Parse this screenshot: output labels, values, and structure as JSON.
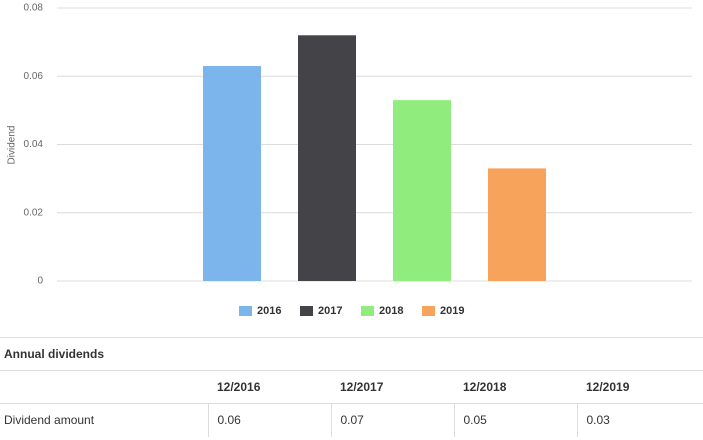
{
  "chart_data": {
    "type": "bar",
    "y_label": "Dividend",
    "categories": [
      null
    ],
    "series": [
      {
        "name": "2016",
        "color": "#7cb5ec",
        "values": [
          0.063
        ]
      },
      {
        "name": "2017",
        "color": "#434348",
        "values": [
          0.072
        ]
      },
      {
        "name": "2018",
        "color": "#90ed7d",
        "values": [
          0.053
        ]
      },
      {
        "name": "2019",
        "color": "#f7a35c",
        "values": [
          0.033
        ]
      }
    ],
    "ylim": [
      0,
      0.08
    ],
    "yticks": [
      0,
      0.02,
      0.04,
      0.06,
      0.08
    ],
    "grid": true,
    "legend": "bottom"
  },
  "table": {
    "title": "Annual dividends",
    "columns": [
      "12/2016",
      "12/2017",
      "12/2018",
      "12/2019"
    ],
    "rows": [
      {
        "label": "Dividend amount",
        "values": [
          0.06,
          0.07,
          0.05,
          0.03
        ]
      }
    ]
  }
}
